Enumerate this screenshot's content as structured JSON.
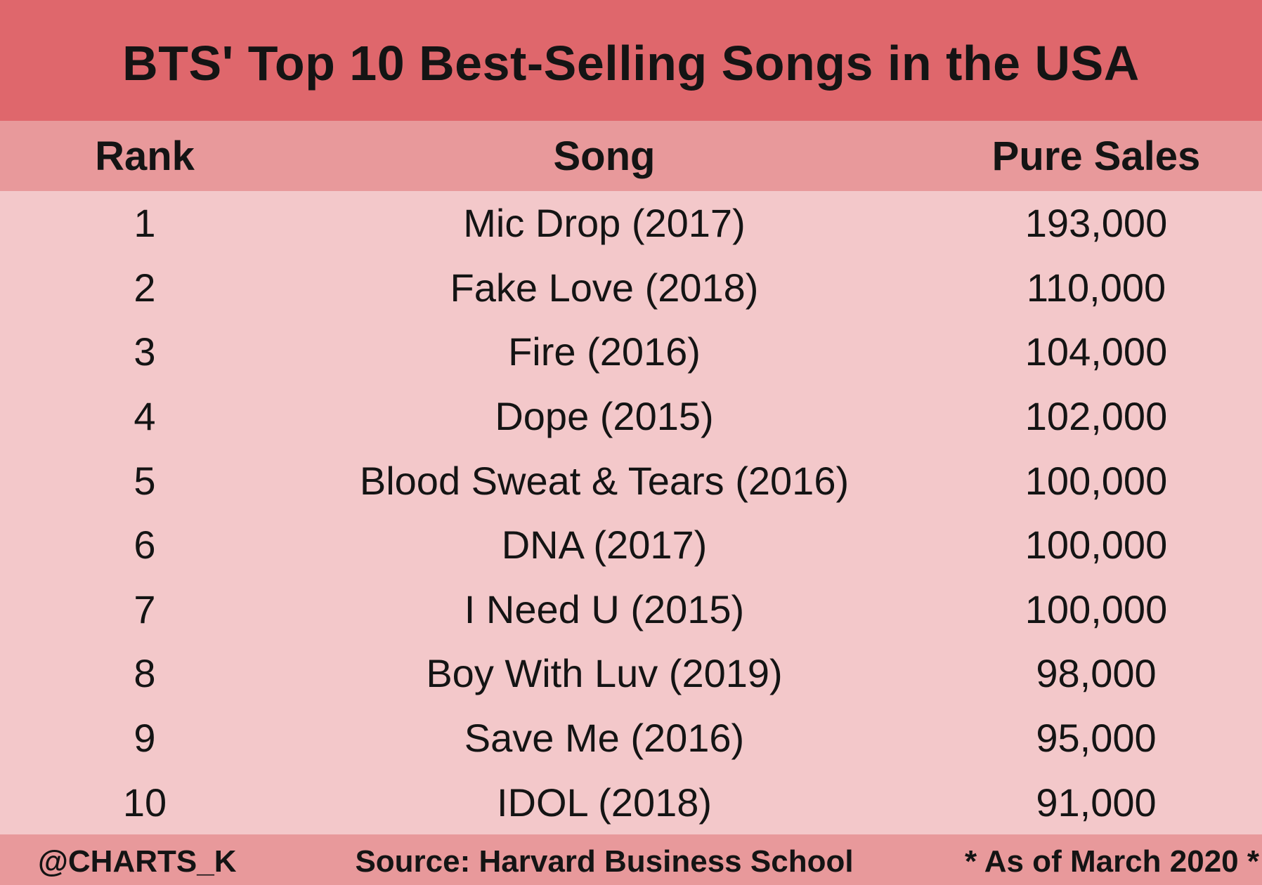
{
  "chart_data": {
    "type": "table",
    "title": "BTS' Top 10 Best-Selling Songs in the USA",
    "columns": [
      "Rank",
      "Song",
      "Pure Sales"
    ],
    "rows": [
      {
        "rank": "1",
        "song": "Mic Drop (2017)",
        "sales": "193,000"
      },
      {
        "rank": "2",
        "song": "Fake Love (2018)",
        "sales": "110,000"
      },
      {
        "rank": "3",
        "song": "Fire (2016)",
        "sales": "104,000"
      },
      {
        "rank": "4",
        "song": "Dope (2015)",
        "sales": "102,000"
      },
      {
        "rank": "5",
        "song": "Blood Sweat & Tears (2016)",
        "sales": "100,000"
      },
      {
        "rank": "6",
        "song": "DNA (2017)",
        "sales": "100,000"
      },
      {
        "rank": "7",
        "song": "I Need U (2015)",
        "sales": "100,000"
      },
      {
        "rank": "8",
        "song": "Boy With Luv (2019)",
        "sales": "98,000"
      },
      {
        "rank": "9",
        "song": "Save Me (2016)",
        "sales": "95,000"
      },
      {
        "rank": "10",
        "song": "IDOL (2018)",
        "sales": "91,000"
      }
    ]
  },
  "footer": {
    "handle": "@CHARTS_K",
    "source": "Source: Harvard Business School",
    "as_of": "* As of March 2020 *"
  },
  "colors": {
    "title_bar": "#df676c",
    "header_bar": "#e8999b",
    "body": "#f3c8ca",
    "footer_bar": "#e8999b",
    "text": "#141414"
  }
}
